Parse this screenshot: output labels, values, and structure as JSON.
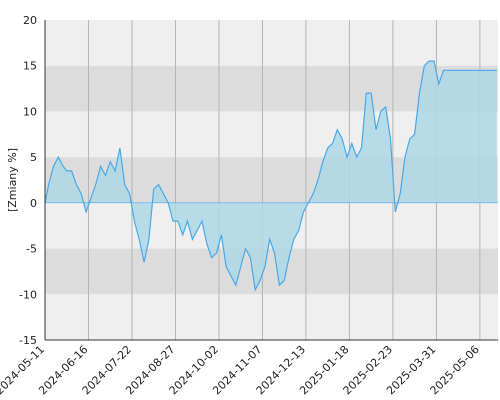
{
  "chart_data": {
    "type": "area",
    "title": "",
    "xlabel": "",
    "ylabel": "[Zmiany %]",
    "ylim": [
      -15,
      20
    ],
    "y_ticks": [
      -15,
      -10,
      -5,
      0,
      5,
      10,
      15,
      20
    ],
    "x_tick_labels": [
      "2024-05-11",
      "2024-06-16",
      "2024-07-22",
      "2024-08-27",
      "2024-10-02",
      "2024-11-07",
      "2024-12-13",
      "2025-01-18",
      "2025-02-23",
      "2025-03-31",
      "2025-05-06"
    ],
    "x_range": [
      "2024-05-11",
      "2025-05-21"
    ],
    "grid": true,
    "colors": {
      "band_light": "#efefef",
      "band_dark": "#dcdcdc",
      "vgrid": "#b4b4b4",
      "line": "#49a8e8",
      "fill": "#add8e6",
      "axis": "#333333"
    },
    "series": [
      {
        "x": [
          "2024-05-11",
          "2024-05-14",
          "2024-05-18",
          "2024-05-22",
          "2024-05-26",
          "2024-05-29",
          "2024-06-02",
          "2024-06-06",
          "2024-06-10",
          "2024-06-14",
          "2024-06-18",
          "2024-06-22",
          "2024-06-26",
          "2024-06-30",
          "2024-07-04",
          "2024-07-08",
          "2024-07-12",
          "2024-07-16",
          "2024-07-20",
          "2024-07-24",
          "2024-07-28",
          "2024-08-01",
          "2024-08-05",
          "2024-08-09",
          "2024-08-13",
          "2024-08-17",
          "2024-08-21",
          "2024-08-25",
          "2024-08-29",
          "2024-09-02",
          "2024-09-06",
          "2024-09-10",
          "2024-09-14",
          "2024-09-18",
          "2024-09-22",
          "2024-09-26",
          "2024-09-30",
          "2024-10-04",
          "2024-10-08",
          "2024-10-12",
          "2024-10-16",
          "2024-10-20",
          "2024-10-24",
          "2024-10-28",
          "2024-11-01",
          "2024-11-05",
          "2024-11-09",
          "2024-11-13",
          "2024-11-17",
          "2024-11-21",
          "2024-11-25",
          "2024-11-29",
          "2024-12-03",
          "2024-12-07",
          "2024-12-11",
          "2024-12-15",
          "2024-12-19",
          "2024-12-23",
          "2024-12-27",
          "2024-12-31",
          "2025-01-04",
          "2025-01-08",
          "2025-01-12",
          "2025-01-16",
          "2025-01-20",
          "2025-01-24",
          "2025-01-28",
          "2025-02-01",
          "2025-02-05",
          "2025-02-09",
          "2025-02-13",
          "2025-02-17",
          "2025-02-21",
          "2025-02-25",
          "2025-03-01",
          "2025-03-05",
          "2025-03-09",
          "2025-03-13",
          "2025-03-17",
          "2025-03-21",
          "2025-03-25",
          "2025-03-29",
          "2025-04-02",
          "2025-04-06",
          "2025-04-10",
          "2025-04-14",
          "2025-04-18",
          "2025-04-22",
          "2025-04-26",
          "2025-04-30",
          "2025-05-04",
          "2025-05-08",
          "2025-05-12",
          "2025-05-16",
          "2025-05-20"
        ],
        "y": [
          0,
          2,
          4,
          5,
          4,
          3.5,
          3.5,
          2,
          1,
          -1,
          0.5,
          2,
          4,
          3,
          4.5,
          3.5,
          6,
          2,
          1,
          -2,
          -4,
          -6.5,
          -4,
          1.5,
          2,
          1,
          0,
          -2,
          -2,
          -3.5,
          -2,
          -4,
          -3,
          -2,
          -4.5,
          -6,
          -5.5,
          -3.5,
          -7,
          -8,
          -9,
          -7,
          -5,
          -6,
          -9.5,
          -8.5,
          -7,
          -4,
          -5.5,
          -9,
          -8.5,
          -6,
          -4,
          -3,
          -1,
          0,
          1,
          2.5,
          4.5,
          6,
          6.5,
          8,
          7,
          5,
          6.5,
          5,
          6,
          12,
          12,
          8,
          10,
          10.5,
          7,
          -1,
          1,
          5,
          7,
          7.5,
          12,
          15,
          15.5,
          15.5,
          13,
          14.5,
          14.5,
          14.5,
          14.5,
          14.5,
          14.5,
          14.5,
          14.5,
          14.5,
          14.5,
          14.5,
          14.5
        ]
      }
    ]
  }
}
